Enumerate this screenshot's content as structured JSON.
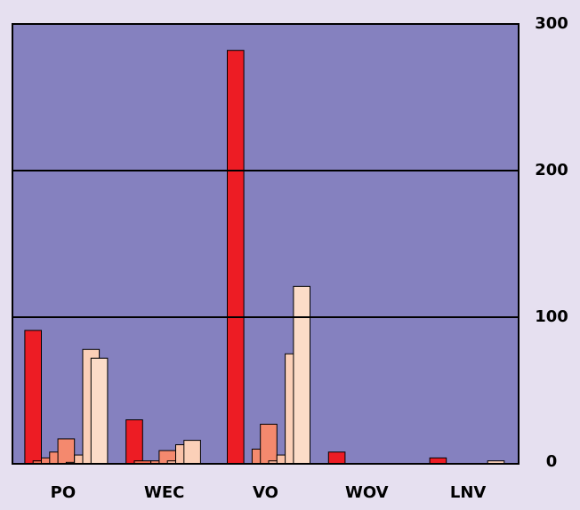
{
  "chart_data": {
    "type": "bar",
    "categories": [
      "PO",
      "WEC",
      "VO",
      "WOV",
      "LNV"
    ],
    "series": [
      {
        "color": "#ed1c24",
        "values": [
          91,
          30,
          282,
          8,
          4
        ]
      },
      {
        "color": "#f26a4f",
        "values": [
          2,
          2,
          0,
          0,
          0
        ]
      },
      {
        "color": "#f3826a",
        "values": [
          4,
          0,
          0,
          0,
          0
        ]
      },
      {
        "color": "#f58a6e",
        "values": [
          8,
          2,
          10,
          0,
          0
        ]
      },
      {
        "color": "#f4896e",
        "values": [
          17,
          9,
          27,
          0,
          0
        ]
      },
      {
        "color": "#f7b39a",
        "values": [
          1,
          2,
          2,
          0,
          0
        ]
      },
      {
        "color": "#f9c2a8",
        "values": [
          6,
          13,
          6,
          0,
          0
        ]
      },
      {
        "color": "#fbd0b8",
        "values": [
          78,
          16,
          75,
          0,
          2
        ]
      },
      {
        "color": "#fcdcc8",
        "values": [
          72,
          0,
          121,
          0,
          0
        ]
      }
    ],
    "ylim": [
      0,
      300
    ],
    "yticks": [
      0,
      100,
      200,
      300
    ],
    "grid": true,
    "plot_color": "#8581bf"
  }
}
